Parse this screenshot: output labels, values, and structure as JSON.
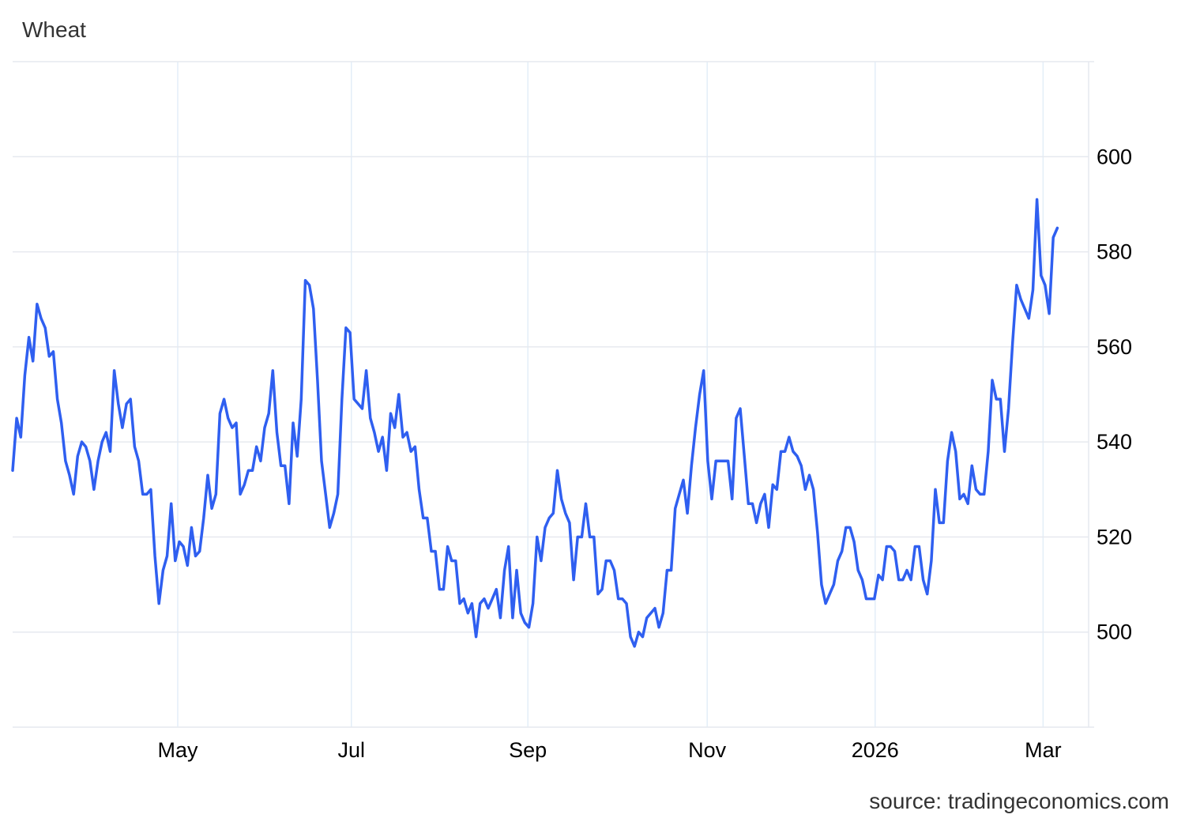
{
  "title": "Wheat",
  "source": "source: tradingeconomics.com",
  "colors": {
    "line": "#2f5ff0",
    "grid": "#e6e9ef",
    "vgrid": "#e3eef8"
  },
  "chart_data": {
    "type": "line",
    "title": "Wheat",
    "xlabel": "",
    "ylabel": "",
    "ylim": [
      480,
      620
    ],
    "yticks": [
      500,
      520,
      540,
      560,
      580,
      600
    ],
    "xlim": [
      "2025-03-04",
      "2026-03-17"
    ],
    "xticks": [
      {
        "label": "May",
        "date": "2025-05-01"
      },
      {
        "label": "Jul",
        "date": "2025-07-01"
      },
      {
        "label": "Sep",
        "date": "2025-09-01"
      },
      {
        "label": "Nov",
        "date": "2025-11-03"
      },
      {
        "label": "2026",
        "date": "2026-01-01"
      },
      {
        "label": "Mar",
        "date": "2026-03-01"
      }
    ],
    "grid": true,
    "legend": "none",
    "series": [
      {
        "name": "",
        "x_start": "2025-03-04",
        "x_end": "2026-03-06",
        "values": [
          534,
          545,
          541,
          554,
          562,
          557,
          569,
          566,
          564,
          558,
          559,
          549,
          544,
          536,
          533,
          529,
          537,
          540,
          539,
          536,
          530,
          536,
          540,
          542,
          538,
          555,
          548,
          543,
          548,
          549,
          539,
          536,
          529,
          529,
          530,
          516,
          506,
          513,
          516,
          527,
          515,
          519,
          518,
          514,
          522,
          516,
          517,
          524,
          533,
          526,
          529,
          546,
          549,
          545,
          543,
          544,
          529,
          531,
          534,
          534,
          539,
          536,
          543,
          546,
          555,
          542,
          535,
          535,
          527,
          544,
          537,
          549,
          574,
          573,
          568,
          553,
          536,
          529,
          522,
          525,
          529,
          549,
          564,
          563,
          549,
          548,
          547,
          555,
          545,
          542,
          538,
          541,
          534,
          546,
          543,
          550,
          541,
          542,
          538,
          539,
          530,
          524,
          524,
          517,
          517,
          509,
          509,
          518,
          515,
          515,
          506,
          507,
          504,
          506,
          499,
          506,
          507,
          505,
          507,
          509,
          503,
          513,
          518,
          503,
          513,
          504,
          502,
          501,
          506,
          520,
          515,
          522,
          524,
          525,
          534,
          528,
          525,
          523,
          511,
          520,
          520,
          527,
          520,
          520,
          508,
          509,
          515,
          515,
          513,
          507,
          507,
          506,
          499,
          497,
          500,
          499,
          503,
          504,
          505,
          501,
          504,
          513,
          513,
          526,
          529,
          532,
          525,
          535,
          543,
          550,
          555,
          536,
          528,
          536,
          536,
          536,
          536,
          528,
          545,
          547,
          537,
          527,
          527,
          523,
          527,
          529,
          522,
          531,
          530,
          538,
          538,
          541,
          538,
          537,
          535,
          530,
          533,
          530,
          521,
          510,
          506,
          508,
          510,
          515,
          517,
          522,
          522,
          519,
          513,
          511,
          507,
          507,
          507,
          512,
          511,
          518,
          518,
          517,
          511,
          511,
          513,
          511,
          518,
          518,
          511,
          508,
          515,
          530,
          523,
          523,
          536,
          542,
          538,
          528,
          529,
          527,
          535,
          530,
          529,
          529,
          538,
          553,
          549,
          549,
          538,
          547,
          561,
          573,
          570,
          568,
          566,
          572,
          591,
          575,
          573,
          567,
          583,
          585
        ]
      }
    ]
  }
}
